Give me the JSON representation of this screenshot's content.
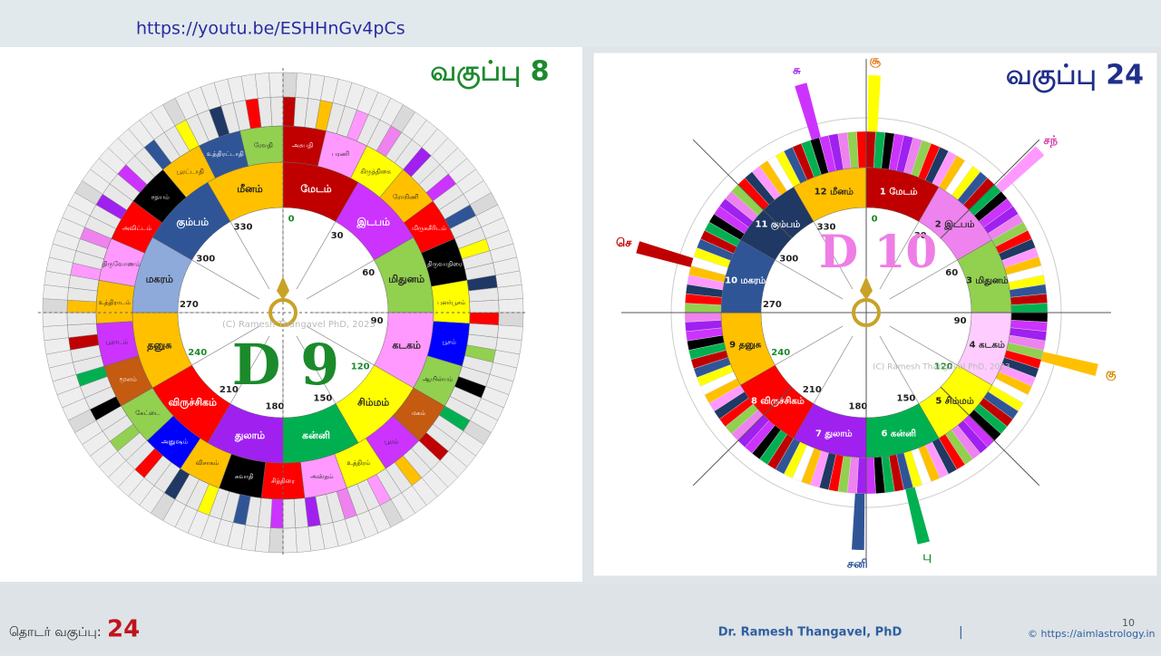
{
  "header": {
    "url": "https://youtu.be/ESHHnGv4pCs"
  },
  "left_wheel": {
    "title": "வகுப்பு 8",
    "center_label": "D 9",
    "signs": [
      "மேடம்",
      "இடபம்",
      "மிதுனம்",
      "கடகம்",
      "சிம்மம்",
      "கன்னி",
      "துலாம்",
      "விருச்சிகம்",
      "தனுசு",
      "மகரம்",
      "கும்பம்",
      "மீனம்"
    ],
    "stars": [
      "அசுபதி",
      "பரணி",
      "கிருத்திகை",
      "ரோகிணி",
      "மிருகசீரிடம்",
      "திருவாதிரை",
      "புனர்பூசம்",
      "பூசம்",
      "ஆயில்யம்",
      "மகம்",
      "பூரம்",
      "உத்திரம்",
      "அஸ்தம்",
      "சித்திரை",
      "சுவாதி",
      "விசாகம்",
      "அனுஷம்",
      "கேட்டை",
      "மூலம்",
      "பூராடம்",
      "உத்திராடம்",
      "திருவோணம்",
      "அவிட்டம்",
      "சதயம்",
      "பூரட்டாதி",
      "உத்திரட்டாதி",
      "ரேவதி"
    ],
    "degrees": [
      0,
      30,
      60,
      90,
      120,
      150,
      180,
      210,
      240,
      270,
      300,
      330
    ]
  },
  "right_wheel": {
    "title": "வகுப்பு 24",
    "center_label": "D 10",
    "signs": [
      "1 மேடம்",
      "2 இடபம்",
      "3 மிதுனம்",
      "4 கடகம்",
      "5 சிம்மம்",
      "6 கன்னி",
      "7 துலாம்",
      "8 விருச்சிகம்",
      "9 தனுசு",
      "10 மகரம்",
      "11 கும்பம்",
      "12 மீனம்"
    ],
    "degrees": [
      0,
      30,
      60,
      90,
      120,
      150,
      180,
      210,
      240,
      270,
      300,
      330
    ],
    "planets": [
      "சூ",
      "சந்",
      "கு",
      "பு",
      "சனி",
      "செ",
      "சு"
    ]
  },
  "watermark": "(C) Ramesh Thangavel PhD, 2023",
  "footer": {
    "series_label": "தொடர் வகுப்பு:",
    "series_number": "24",
    "author": "Dr. Ramesh Thangavel, PhD",
    "separator": "|",
    "website": "© https://aimlastrology.in",
    "page_number": "10"
  }
}
